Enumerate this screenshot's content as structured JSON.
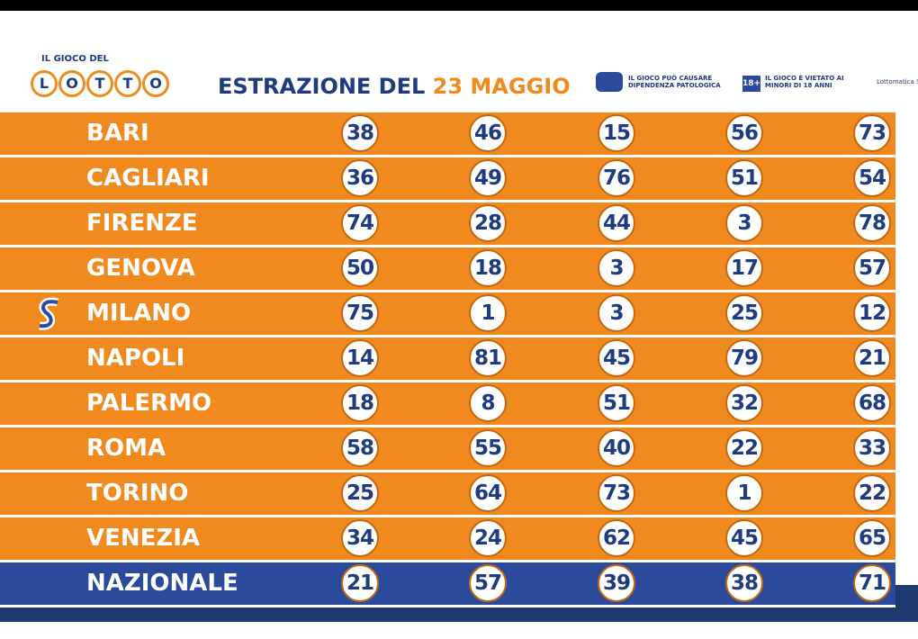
{
  "header": {
    "logo_top": "IL GIOCO DEL",
    "logo_letters": [
      "L",
      "O",
      "T",
      "T",
      "O"
    ],
    "title": "ESTRAZIONE DEL",
    "date": "23 MAGGIO",
    "warning_1": "IL GIOCO PUÒ CAUSARE DIPENDENZA PATOLOGICA",
    "age_badge": "18+",
    "warning_2": "IL GIOCO È VIETATO AI MINORI DI 18 ANNI",
    "operator": "Lottomatica S.r.l."
  },
  "table": {
    "rows": [
      {
        "city": "BARI",
        "numbers": [
          38,
          46,
          15,
          56,
          73
        ]
      },
      {
        "city": "CAGLIARI",
        "numbers": [
          36,
          49,
          76,
          51,
          54
        ]
      },
      {
        "city": "FIRENZE",
        "numbers": [
          74,
          28,
          44,
          3,
          78
        ]
      },
      {
        "city": "GENOVA",
        "numbers": [
          50,
          18,
          3,
          17,
          57
        ]
      },
      {
        "city": "MILANO",
        "numbers": [
          75,
          1,
          3,
          25,
          12
        ]
      },
      {
        "city": "NAPOLI",
        "numbers": [
          14,
          81,
          45,
          79,
          21
        ]
      },
      {
        "city": "PALERMO",
        "numbers": [
          18,
          8,
          51,
          32,
          68
        ]
      },
      {
        "city": "ROMA",
        "numbers": [
          58,
          55,
          40,
          22,
          33
        ]
      },
      {
        "city": "TORINO",
        "numbers": [
          25,
          64,
          73,
          1,
          22
        ]
      },
      {
        "city": "VENEZIA",
        "numbers": [
          34,
          24,
          62,
          45,
          65
        ]
      },
      {
        "city": "NAZIONALE",
        "numbers": [
          21,
          57,
          39,
          38,
          71
        ]
      }
    ]
  }
}
